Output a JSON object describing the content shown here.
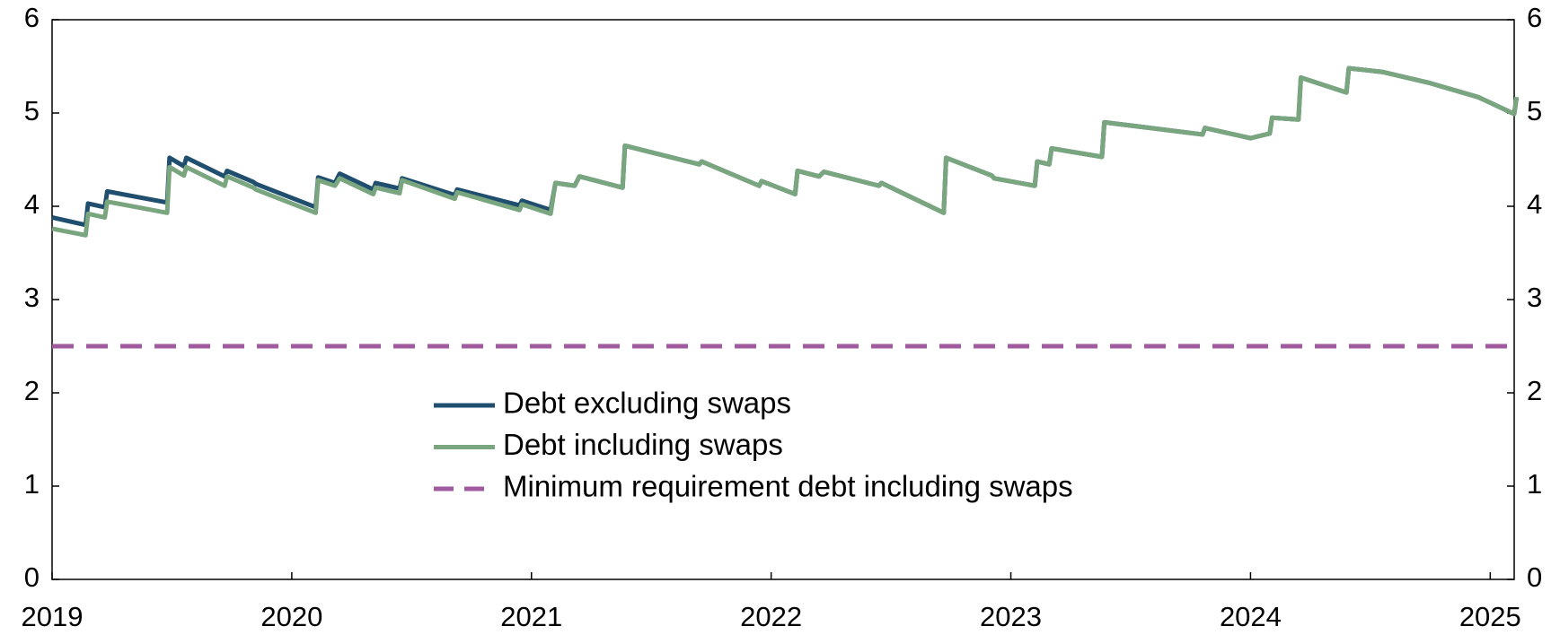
{
  "chart_data": {
    "type": "line",
    "x": [
      2019.0,
      2019.14,
      2019.15,
      2019.22,
      2019.23,
      2019.48,
      2019.49,
      2019.55,
      2019.56,
      2019.72,
      2019.73,
      2019.84,
      2019.85,
      2020.1,
      2020.11,
      2020.18,
      2020.2,
      2020.34,
      2020.35,
      2020.45,
      2020.46,
      2020.68,
      2020.69,
      2020.95,
      2020.96,
      2021.08,
      2021.1,
      2021.18,
      2021.2,
      2021.38,
      2021.39,
      2021.7,
      2021.71,
      2021.95,
      2021.96,
      2022.1,
      2022.11,
      2022.2,
      2022.22,
      2022.45,
      2022.46,
      2022.72,
      2022.73,
      2022.92,
      2022.93,
      2023.1,
      2023.11,
      2023.16,
      2023.17,
      2023.38,
      2023.39,
      2023.55,
      2023.8,
      2023.81,
      2024.0,
      2024.08,
      2024.09,
      2024.2,
      2024.21,
      2024.4,
      2024.41,
      2024.55,
      2024.75,
      2024.95,
      2025.1,
      2025.11
    ],
    "series": [
      {
        "name": "Debt excluding swaps",
        "color": "#1f4e6e",
        "values": [
          3.88,
          3.8,
          4.03,
          3.99,
          4.16,
          4.04,
          4.52,
          4.43,
          4.52,
          4.32,
          4.38,
          4.26,
          4.24,
          3.99,
          4.31,
          4.25,
          4.35,
          4.18,
          4.25,
          4.19,
          4.3,
          4.12,
          4.18,
          4.01,
          4.06,
          3.96,
          4.25,
          4.22,
          4.32,
          4.2,
          4.65,
          4.45,
          4.48,
          4.22,
          4.27,
          4.13,
          4.38,
          4.32,
          4.37,
          4.22,
          4.25,
          3.93,
          4.52,
          4.33,
          4.3,
          4.22,
          4.48,
          4.45,
          4.62,
          4.53,
          4.9,
          4.85,
          4.77,
          4.84,
          4.73,
          4.78,
          4.95,
          4.93,
          5.38,
          5.22,
          5.48,
          5.44,
          5.32,
          5.17,
          4.99,
          5.17
        ]
      },
      {
        "name": "Debt including swaps",
        "color": "#7aa67f",
        "values": [
          3.76,
          3.69,
          3.92,
          3.88,
          4.05,
          3.93,
          4.42,
          4.33,
          4.42,
          4.22,
          4.32,
          4.2,
          4.18,
          3.93,
          4.28,
          4.22,
          4.3,
          4.13,
          4.2,
          4.14,
          4.28,
          4.08,
          4.15,
          3.96,
          4.02,
          3.92,
          4.25,
          4.22,
          4.32,
          4.2,
          4.65,
          4.45,
          4.48,
          4.22,
          4.27,
          4.13,
          4.38,
          4.32,
          4.37,
          4.22,
          4.25,
          3.93,
          4.52,
          4.33,
          4.3,
          4.22,
          4.48,
          4.45,
          4.62,
          4.53,
          4.9,
          4.85,
          4.77,
          4.84,
          4.73,
          4.78,
          4.95,
          4.93,
          5.38,
          5.22,
          5.48,
          5.44,
          5.32,
          5.17,
          4.99,
          5.17
        ]
      },
      {
        "name": "Minimum requirement debt including swaps",
        "color": "#a05a9e",
        "dash": true,
        "x": [
          2019.0,
          2025.1
        ],
        "values": [
          2.5,
          2.5
        ]
      }
    ],
    "xlim": [
      2019,
      2025.1
    ],
    "xticks": [
      2019,
      2020,
      2021,
      2022,
      2023,
      2024,
      2025
    ],
    "ylim": [
      0,
      6
    ],
    "yticks": [
      0,
      1,
      2,
      3,
      4,
      5,
      6
    ]
  }
}
